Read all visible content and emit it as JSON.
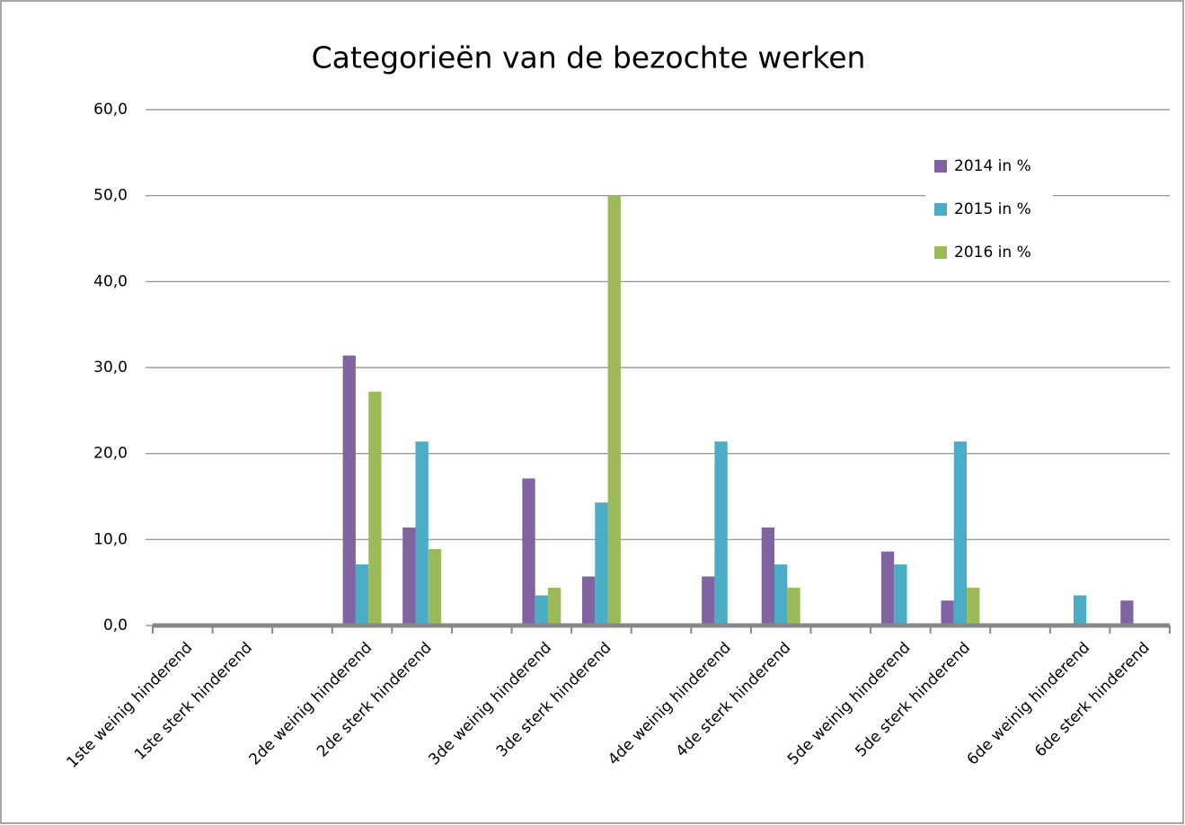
{
  "chart_data": {
    "type": "bar",
    "title": "Categorieën van de bezochte werken",
    "categories": [
      "1ste weinig hinderend",
      "1ste sterk hinderend",
      null,
      "2de weinig hinderend",
      "2de sterk hinderend",
      null,
      "3de weinig hinderend",
      "3de sterk hinderend",
      null,
      "4de weinig hinderend",
      "4de sterk hinderend",
      null,
      "5de weinig hinderend",
      "5de sterk hinderend",
      null,
      "6de weinig hinderend",
      "6de sterk hinderend"
    ],
    "series": [
      {
        "name": "2014 in %",
        "color": "#8064a2",
        "values": [
          0,
          0,
          null,
          31.4,
          11.4,
          null,
          17.1,
          5.7,
          null,
          5.7,
          11.4,
          null,
          8.6,
          2.9,
          null,
          0,
          2.9
        ]
      },
      {
        "name": "2015 in %",
        "color": "#4bacc6",
        "values": [
          0,
          0,
          null,
          7.1,
          21.4,
          null,
          3.5,
          14.3,
          null,
          21.4,
          7.1,
          null,
          7.1,
          21.4,
          null,
          3.5,
          0
        ]
      },
      {
        "name": "2016 in %",
        "color": "#9bbb59",
        "values": [
          0,
          0,
          null,
          27.2,
          8.9,
          null,
          4.4,
          50.0,
          null,
          0,
          4.4,
          null,
          0,
          4.4,
          null,
          0,
          0
        ]
      }
    ],
    "ylim": [
      0,
      60
    ],
    "yticks": [
      {
        "value": 0,
        "label": "0,0"
      },
      {
        "value": 10,
        "label": "10,0"
      },
      {
        "value": 20,
        "label": "20,0"
      },
      {
        "value": 30,
        "label": "30,0"
      },
      {
        "value": 40,
        "label": "40,0"
      },
      {
        "value": 50,
        "label": "50,0"
      },
      {
        "value": 60,
        "label": "60,0"
      }
    ],
    "grid": true,
    "legend": "upper right"
  }
}
